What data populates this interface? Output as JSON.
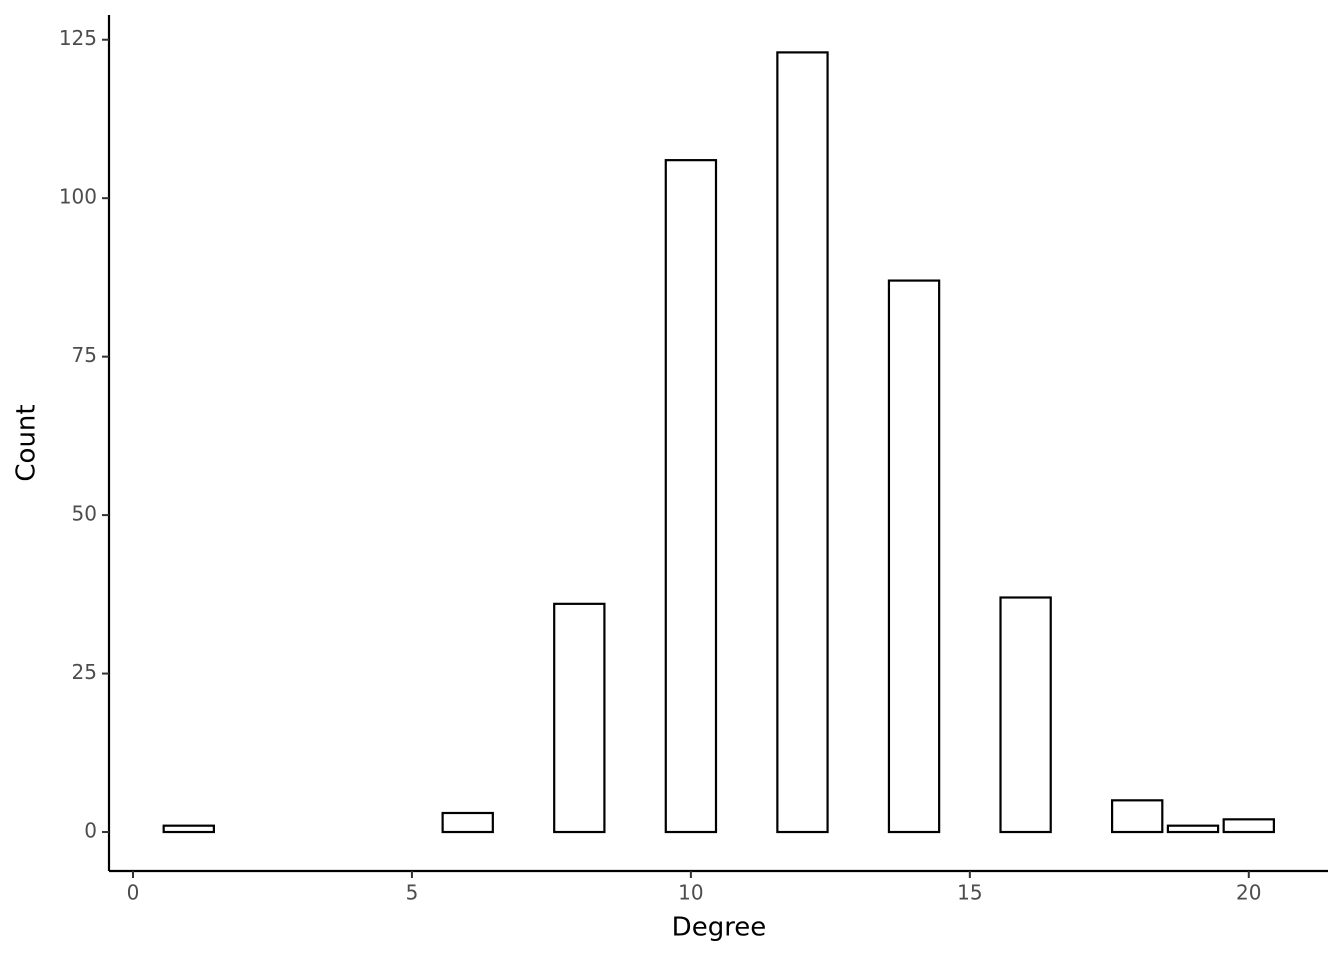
{
  "chart_data": {
    "type": "bar",
    "x_label": "Degree",
    "y_label": "Count",
    "x": [
      1,
      6,
      8,
      10,
      12,
      14,
      16,
      18,
      19,
      20
    ],
    "values": [
      1,
      3,
      36,
      106,
      123,
      87,
      37,
      5,
      1,
      2
    ],
    "color": "#ffffff",
    "edge_color": "#000000",
    "xlim": [
      -0.43,
      21.42
    ],
    "ylim": [
      -6.15,
      128.9
    ],
    "xticks": [
      0,
      5,
      10,
      15,
      20
    ],
    "yticks": [
      0,
      25,
      50,
      75,
      100,
      125
    ],
    "grid": false
  }
}
